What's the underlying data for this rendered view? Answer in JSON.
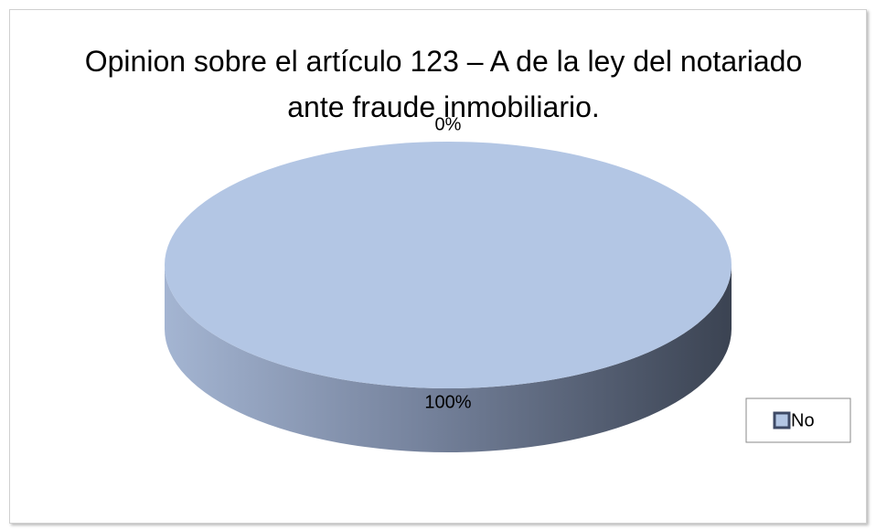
{
  "chart_data": {
    "type": "pie",
    "title": "Opinion sobre el artículo 123 – A de la ley del notariado ante fraude inmobiliario.",
    "categories": [
      null,
      "No"
    ],
    "values": [
      0,
      100
    ],
    "value_labels": [
      "0%",
      "100%"
    ],
    "colors": [
      "#c0504d",
      "#b3c6e4"
    ],
    "legend": "right"
  }
}
